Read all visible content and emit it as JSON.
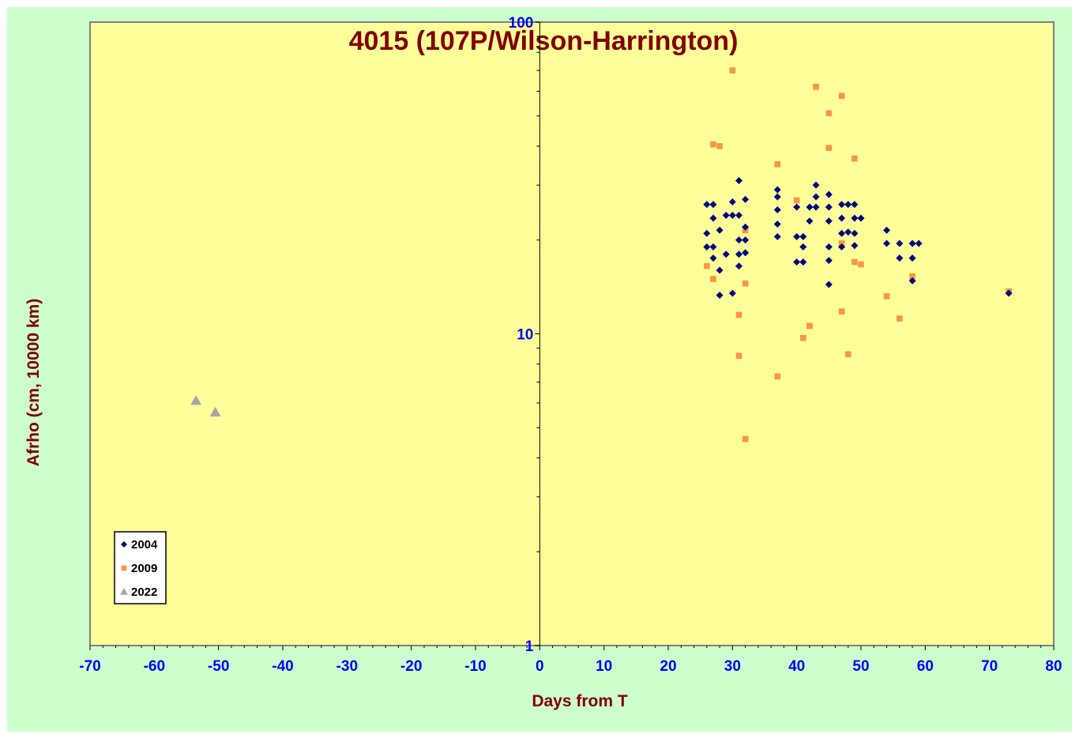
{
  "chart_data": {
    "type": "scatter",
    "title": "4015 (107P/Wilson-Harrington)",
    "xlabel": "Days from T",
    "ylabel": "Afrho (cm, 10000 km)",
    "xlim": [
      -70,
      80
    ],
    "ylim": [
      1,
      100
    ],
    "yscale": "log",
    "x_ticks": [
      "-70",
      "-60",
      "-50",
      "-40",
      "-30",
      "-20",
      "-10",
      "0",
      "10",
      "20",
      "30",
      "40",
      "50",
      "60",
      "70",
      "80"
    ],
    "y_ticks": [
      "1",
      "10",
      "100"
    ],
    "grid": false,
    "legend_position": "bottom-left",
    "colors": {
      "plot_background": "#ffff99",
      "chart_background": "#ccffcc",
      "tick_labels": "#0000ff",
      "titles": "#800000"
    },
    "series": [
      {
        "name": "2004",
        "marker": "diamond",
        "color": "#000080",
        "points": [
          [
            26,
            26
          ],
          [
            27,
            26
          ],
          [
            26,
            21
          ],
          [
            26,
            19
          ],
          [
            27,
            19
          ],
          [
            27,
            23.5
          ],
          [
            27,
            17.5
          ],
          [
            28,
            21.5
          ],
          [
            28,
            16
          ],
          [
            28,
            13.3
          ],
          [
            29,
            24
          ],
          [
            29,
            18
          ],
          [
            30,
            26.5
          ],
          [
            30,
            24
          ],
          [
            30,
            13.5
          ],
          [
            31,
            31
          ],
          [
            31,
            24
          ],
          [
            31,
            20
          ],
          [
            31,
            18
          ],
          [
            31,
            16.5
          ],
          [
            32,
            27
          ],
          [
            32,
            22
          ],
          [
            32,
            20
          ],
          [
            32,
            18.2
          ],
          [
            37,
            29
          ],
          [
            37,
            27.5
          ],
          [
            37,
            25
          ],
          [
            37,
            22.5
          ],
          [
            37,
            20.5
          ],
          [
            40,
            25.5
          ],
          [
            40,
            20.5
          ],
          [
            40,
            17
          ],
          [
            41,
            20.5
          ],
          [
            41,
            19
          ],
          [
            41,
            17
          ],
          [
            42,
            25.5
          ],
          [
            42,
            23
          ],
          [
            43,
            30
          ],
          [
            43,
            27.5
          ],
          [
            43,
            25.5
          ],
          [
            45,
            28
          ],
          [
            45,
            25.5
          ],
          [
            45,
            23
          ],
          [
            45,
            19
          ],
          [
            45,
            17.2
          ],
          [
            45,
            14.4
          ],
          [
            47,
            26
          ],
          [
            47,
            23.5
          ],
          [
            47,
            21
          ],
          [
            47,
            19
          ],
          [
            48,
            26
          ],
          [
            48,
            21.2
          ],
          [
            49,
            26
          ],
          [
            49,
            23.5
          ],
          [
            49,
            21
          ],
          [
            49,
            19.2
          ],
          [
            50,
            23.5
          ],
          [
            54,
            21.5
          ],
          [
            54,
            19.5
          ],
          [
            56,
            19.5
          ],
          [
            56,
            17.5
          ],
          [
            58,
            19.5
          ],
          [
            58,
            17.5
          ],
          [
            58,
            14.8
          ],
          [
            59,
            19.5
          ],
          [
            73,
            13.5
          ]
        ]
      },
      {
        "name": "2009",
        "marker": "square",
        "color": "#f79646",
        "points": [
          [
            26,
            16.5
          ],
          [
            27,
            40.5
          ],
          [
            27,
            15
          ],
          [
            28,
            40
          ],
          [
            30,
            70
          ],
          [
            31,
            11.5
          ],
          [
            31,
            8.5
          ],
          [
            32,
            21.5
          ],
          [
            32,
            14.5
          ],
          [
            32,
            4.6
          ],
          [
            37,
            35
          ],
          [
            37,
            7.3
          ],
          [
            40,
            26.8
          ],
          [
            41,
            9.7
          ],
          [
            42,
            10.6
          ],
          [
            43,
            62
          ],
          [
            45,
            51
          ],
          [
            45,
            39.5
          ],
          [
            47,
            58
          ],
          [
            47,
            19.5
          ],
          [
            47,
            11.8
          ],
          [
            48,
            8.6
          ],
          [
            49,
            36.5
          ],
          [
            49,
            17
          ],
          [
            50,
            16.7
          ],
          [
            54,
            13.2
          ],
          [
            56,
            11.2
          ],
          [
            58,
            15.3
          ],
          [
            73,
            13.7
          ]
        ]
      },
      {
        "name": "2022",
        "marker": "triangle",
        "color": "#a6a6a6",
        "points": [
          [
            -53.5,
            6.1
          ],
          [
            -50.5,
            5.6
          ]
        ]
      }
    ]
  }
}
